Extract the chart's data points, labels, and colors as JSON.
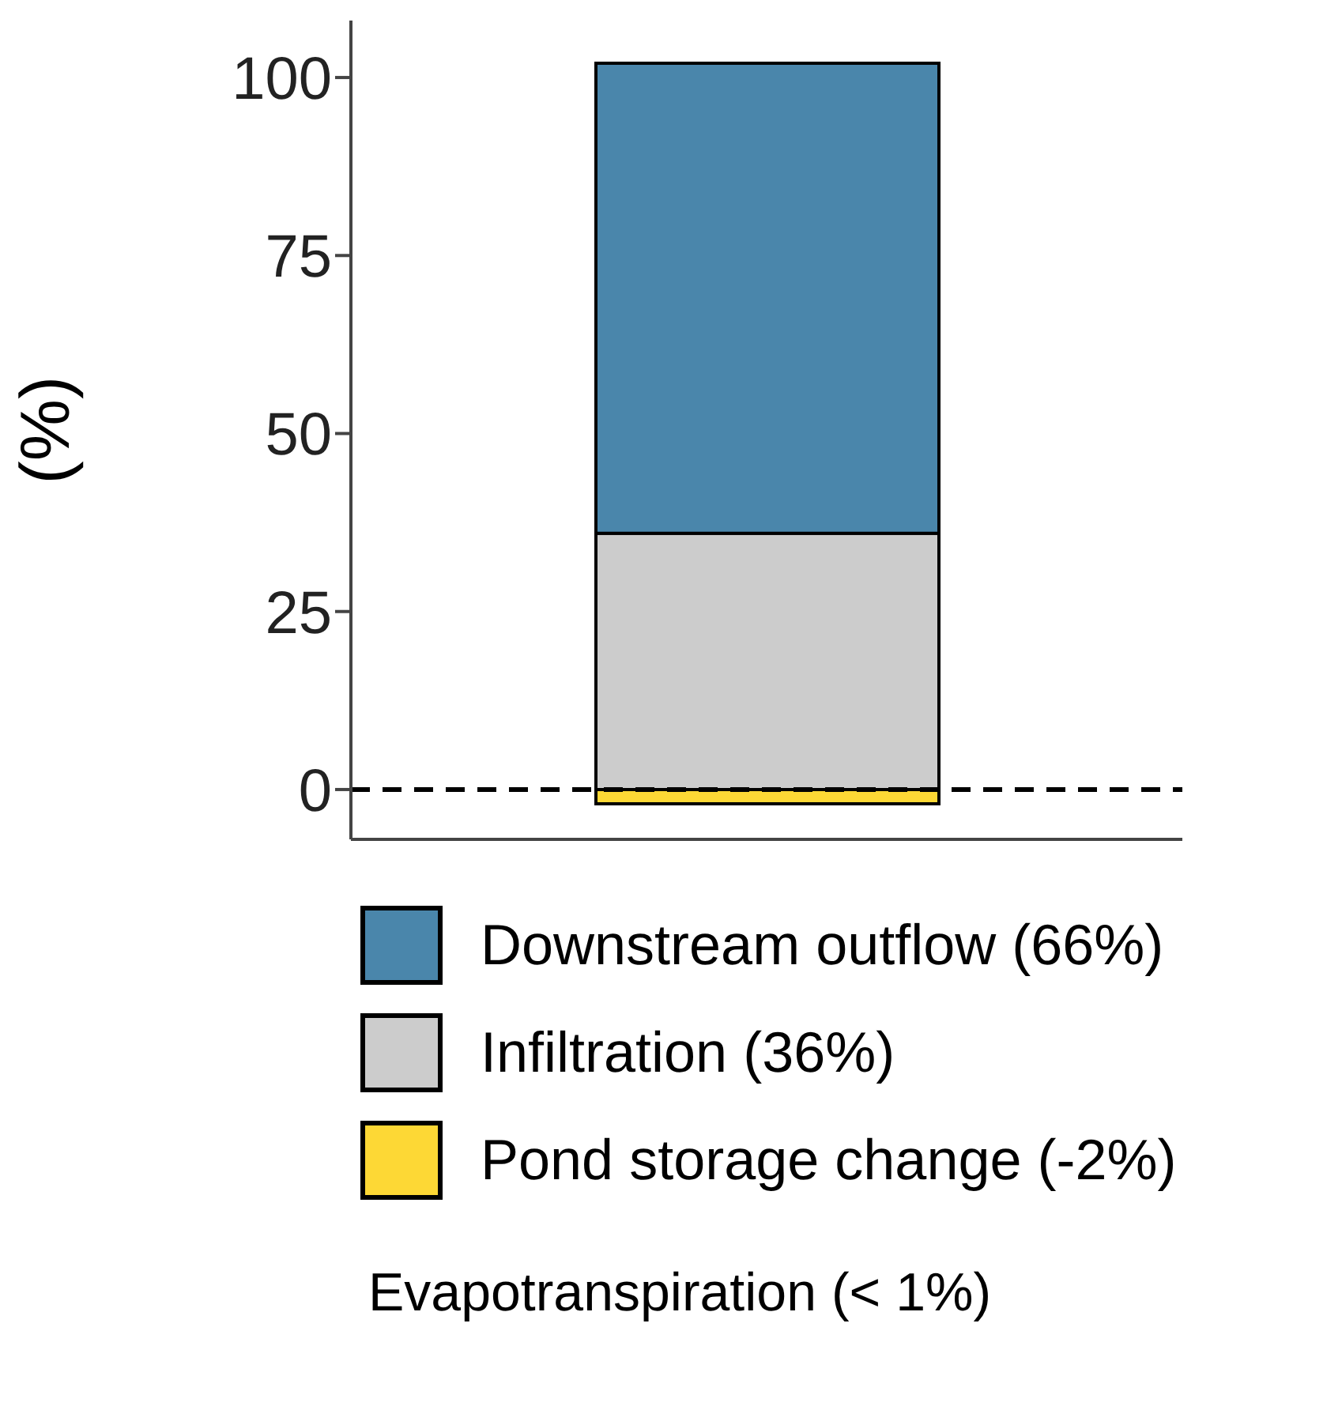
{
  "chart_data": {
    "type": "bar",
    "ylabel": "(%)",
    "categories": [
      null
    ],
    "stacked": true,
    "series": [
      {
        "name": "Pond storage change (-2%)",
        "color": "#fdd835",
        "values": [
          -2
        ]
      },
      {
        "name": "Infiltration (36%)",
        "color": "#cccccc",
        "values": [
          36
        ]
      },
      {
        "name": "Downstream outflow (66%)",
        "color": "#4a86ab",
        "values": [
          66
        ]
      }
    ],
    "ylim": [
      -7,
      108
    ],
    "yticks": [
      0,
      25,
      50,
      75,
      100
    ],
    "grid": false,
    "legend": "bottom",
    "ref_lines": [
      {
        "axis": "y",
        "value": 0,
        "color": "#000000",
        "line_style": "dashed"
      }
    ],
    "annotations": [
      "Evapotranspiration (< 1%)"
    ]
  }
}
